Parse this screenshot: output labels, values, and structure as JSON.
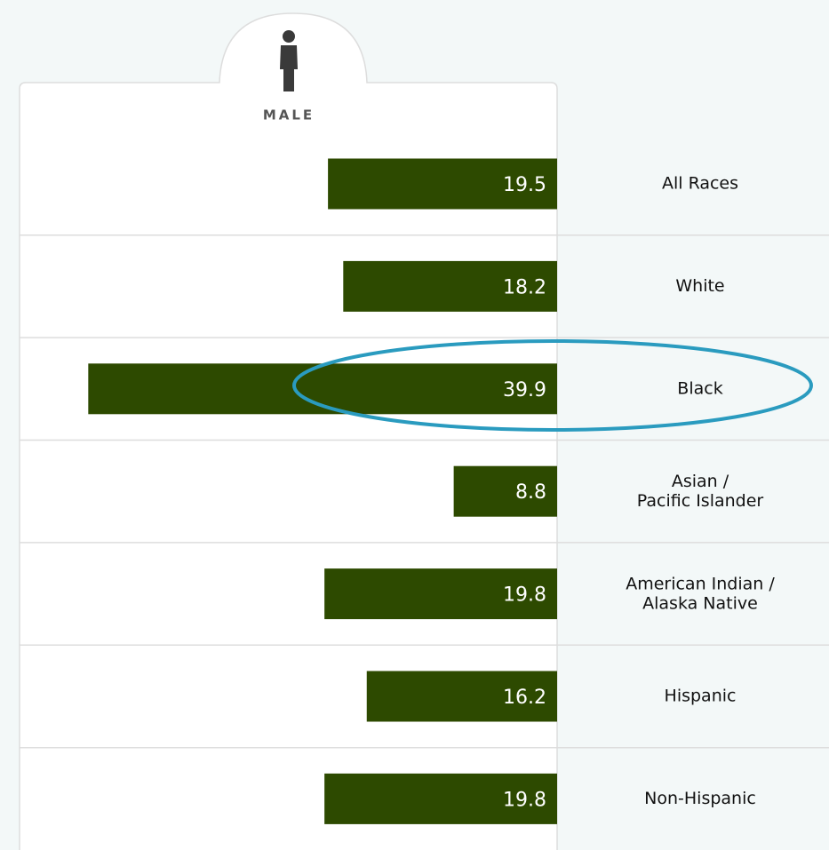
{
  "chart_data": {
    "type": "hbar",
    "categories": [
      "All Races",
      "White",
      "Black",
      "Asian /\nPacific Islander",
      "American Indian /\nAlaska Native",
      "Hispanic",
      "Non-Hispanic"
    ],
    "series": [
      {
        "name": "MALE",
        "color": "#2d4a00",
        "values": [
          19.5,
          18.2,
          39.9,
          8.8,
          19.8,
          16.2,
          19.8
        ]
      }
    ],
    "xlim": [
      0,
      40
    ]
  }
}
